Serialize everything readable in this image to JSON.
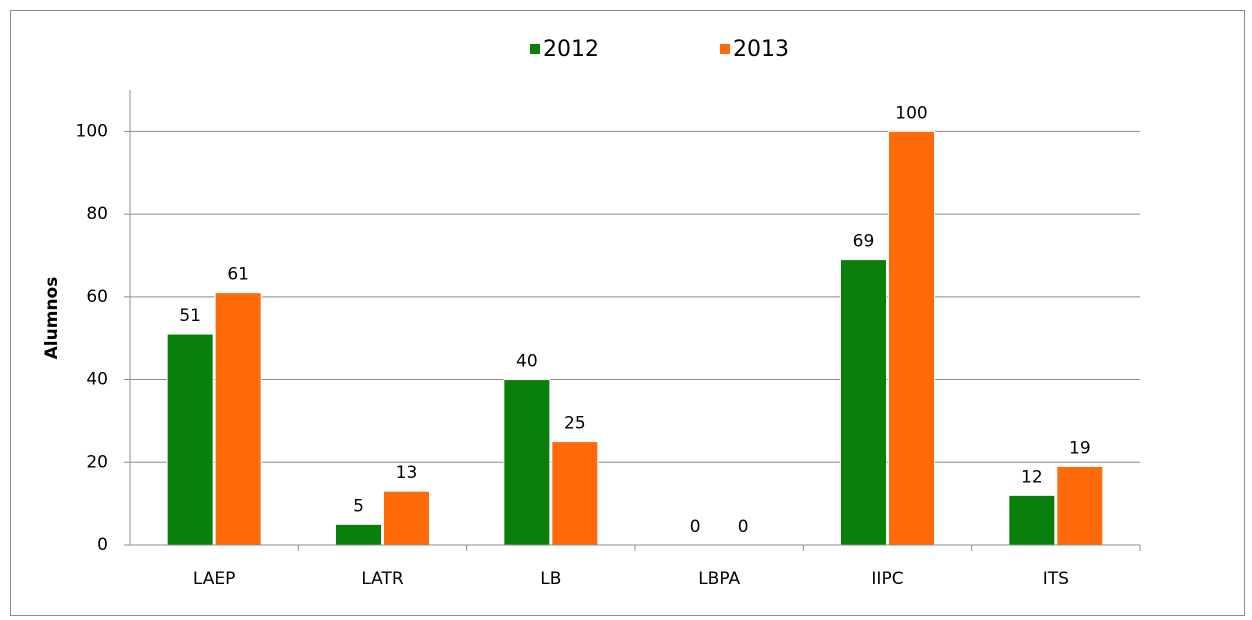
{
  "chart_data": {
    "type": "bar",
    "ylabel": "Alumnos",
    "categories": [
      "LAEP",
      "LATR",
      "LB",
      "LBPA",
      "IIPC",
      "ITS"
    ],
    "series": [
      {
        "name": "2012",
        "color": "#0b7f0b",
        "values": [
          51,
          5,
          40,
          0,
          69,
          12
        ]
      },
      {
        "name": "2013",
        "color": "#ff6a0a",
        "values": [
          61,
          13,
          25,
          0,
          100,
          19
        ]
      }
    ],
    "ylim": [
      0,
      110
    ],
    "yticks": [
      0,
      20,
      40,
      60,
      80,
      100
    ],
    "grid": true,
    "legend": "top"
  }
}
